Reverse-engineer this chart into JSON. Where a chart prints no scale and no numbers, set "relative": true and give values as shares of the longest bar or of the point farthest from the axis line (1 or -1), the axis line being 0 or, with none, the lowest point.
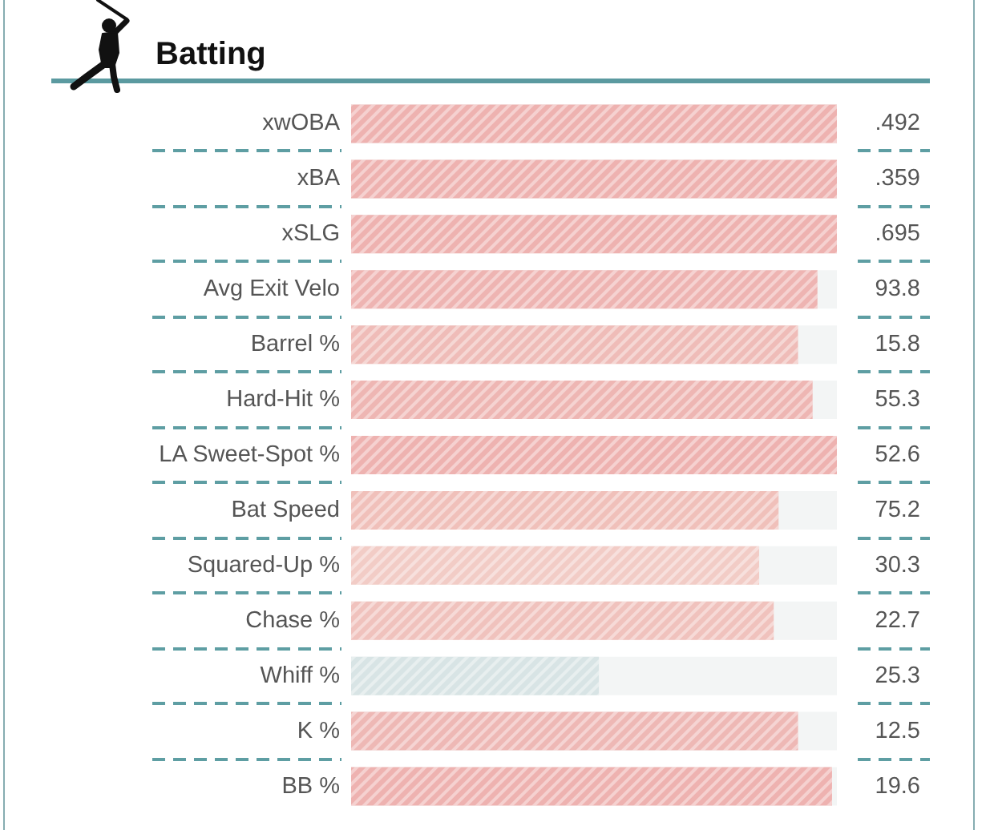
{
  "chart_data": {
    "type": "bar",
    "orientation": "horizontal",
    "relative": true,
    "title": "Batting",
    "categories": [
      "xwOBA",
      "xBA",
      "xSLG",
      "Avg Exit Velo",
      "Barrel %",
      "Hard-Hit %",
      "LA Sweet-Spot %",
      "Bat Speed",
      "Squared-Up %",
      "Chase %",
      "Whiff %",
      "K %",
      "BB %"
    ],
    "values": [
      1,
      1,
      1,
      0.96,
      0.92,
      0.95,
      1,
      0.88,
      0.84,
      0.87,
      0.51,
      0.92,
      0.99
    ],
    "colors": [
      "#eeb2b0",
      "#eeb2b0",
      "#eeb2b0",
      "#eeb4b2",
      "#efbcb8",
      "#eeb6b3",
      "#eeb2b0",
      "#f0c0ba",
      "#f2ccc6",
      "#f0c2bd",
      "#d8e4e5",
      "#eeb8b5",
      "#eeb2b0"
    ],
    "annotations": [
      ".492",
      ".359",
      ".695",
      "93.8",
      "15.8",
      "55.3",
      "52.6",
      "75.2",
      "30.3",
      "22.7",
      "25.3",
      "12.5",
      "19.6"
    ]
  }
}
